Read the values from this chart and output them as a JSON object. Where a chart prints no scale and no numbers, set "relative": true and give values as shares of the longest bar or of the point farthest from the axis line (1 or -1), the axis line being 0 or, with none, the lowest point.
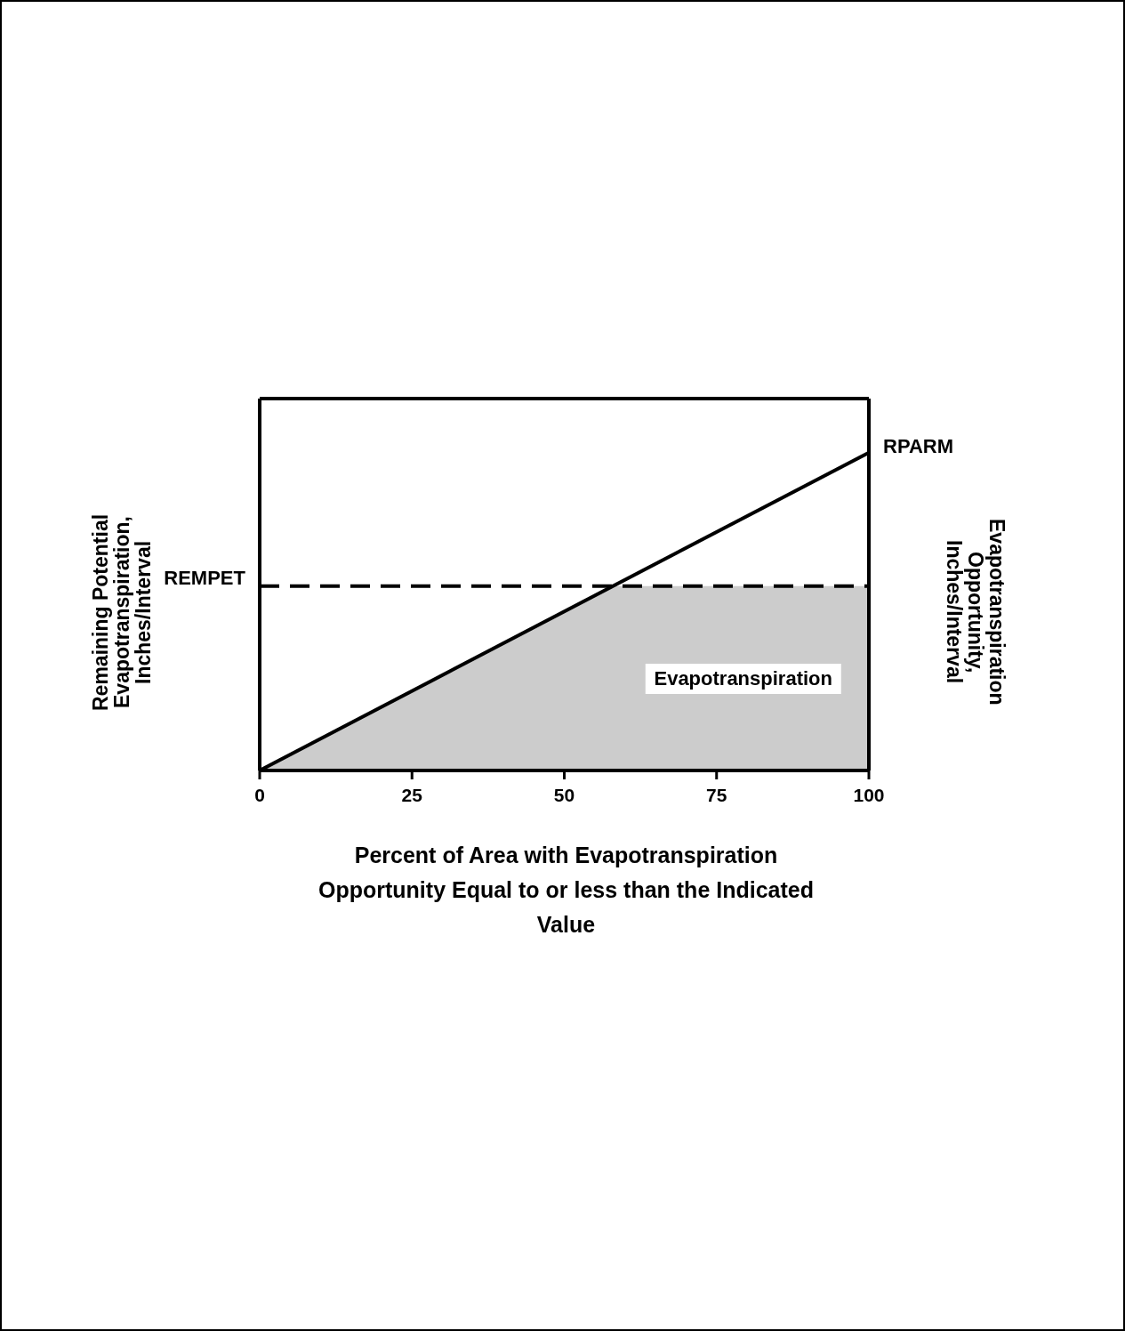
{
  "chart_data": {
    "type": "line",
    "relative": true,
    "xlabel": "Percent of Area with Evapotranspiration Opportunity Equal to or less than the Indicated Value",
    "ylabel": "Remaining Potential Evapotranspiration, Inches/Interval",
    "y2label": "Evapotranspiration Opportunity, Inches/Interval",
    "xlim": [
      0,
      100
    ],
    "xticks": [
      0,
      25,
      50,
      75,
      100
    ],
    "legend": false,
    "grid": false,
    "series": [
      {
        "name": "Evapotranspiration",
        "type": "area",
        "color": "#cccccc",
        "x": [
          0,
          58,
          100
        ],
        "values": [
          0,
          0.58,
          0.58
        ]
      },
      {
        "name": "RPARM",
        "type": "line",
        "color": "#000000",
        "x": [
          0,
          100
        ],
        "values": [
          0,
          1
        ]
      }
    ],
    "ref_lines": [
      {
        "axis": "y",
        "value": 0.58,
        "label": "REMPET",
        "color": "#000000",
        "line_style": "dashed"
      }
    ]
  }
}
